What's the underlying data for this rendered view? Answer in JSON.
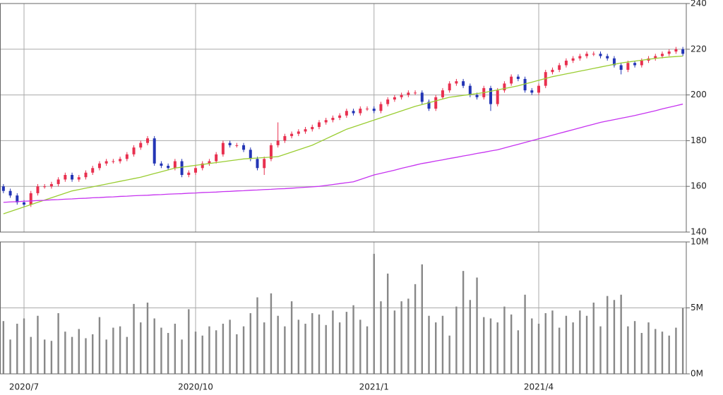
{
  "chart_data": [
    {
      "type": "candlestick",
      "up_color": "#e8304f",
      "down_color": "#2335b5",
      "open": [
        160,
        158,
        156,
        153,
        152,
        157,
        160,
        160,
        161,
        163,
        165,
        163,
        164,
        166,
        168,
        170,
        171,
        171,
        172,
        174,
        177,
        179,
        181,
        170,
        169,
        168,
        171,
        165,
        166,
        168,
        170,
        171,
        174,
        179,
        178,
        178,
        176,
        172,
        168,
        172,
        178,
        180,
        182,
        183,
        184,
        185,
        186,
        188,
        189,
        190,
        191,
        193,
        192,
        194,
        194,
        193,
        196,
        198,
        199,
        200,
        201,
        201,
        197,
        194,
        199,
        202,
        205,
        206,
        204,
        200,
        199,
        203,
        196,
        202,
        205,
        208,
        207,
        202,
        201,
        204,
        210,
        211,
        213,
        215,
        216,
        217,
        218,
        218,
        217,
        216,
        213,
        211,
        214,
        213,
        215,
        216,
        217,
        218,
        219,
        220
      ],
      "high": [
        161,
        159,
        157,
        154,
        158,
        161,
        161,
        162,
        164,
        166,
        166,
        165,
        167,
        169,
        171,
        172,
        172,
        173,
        175,
        178,
        180,
        182,
        182,
        171,
        170,
        172,
        172,
        167,
        169,
        171,
        172,
        175,
        180,
        180,
        179,
        179,
        177,
        173,
        173,
        179,
        188,
        183,
        184,
        185,
        186,
        187,
        189,
        190,
        191,
        192,
        194,
        194,
        195,
        195,
        195,
        197,
        199,
        200,
        201,
        202,
        202,
        202,
        198,
        200,
        203,
        206,
        207,
        207,
        205,
        201,
        204,
        204,
        203,
        206,
        209,
        209,
        208,
        203,
        205,
        211,
        212,
        214,
        216,
        217,
        218,
        219,
        219,
        219,
        218,
        217,
        214,
        215,
        215,
        216,
        217,
        218,
        219,
        220,
        221,
        221
      ],
      "low": [
        157,
        155,
        152,
        151,
        151,
        156,
        159,
        159,
        160,
        162,
        162,
        162,
        163,
        165,
        167,
        169,
        170,
        170,
        171,
        173,
        176,
        178,
        169,
        168,
        167,
        167,
        164,
        164,
        165,
        167,
        169,
        170,
        173,
        177,
        177,
        175,
        171,
        167,
        165,
        171,
        177,
        179,
        181,
        182,
        183,
        184,
        185,
        187,
        188,
        189,
        190,
        191,
        191,
        193,
        192,
        192,
        195,
        197,
        198,
        199,
        200,
        196,
        193,
        193,
        198,
        201,
        204,
        203,
        199,
        198,
        198,
        193,
        195,
        201,
        204,
        206,
        201,
        200,
        200,
        203,
        209,
        210,
        212,
        214,
        215,
        216,
        217,
        216,
        215,
        212,
        209,
        210,
        212,
        212,
        214,
        215,
        216,
        217,
        218,
        217
      ],
      "close": [
        158,
        156,
        153,
        152,
        157,
        160,
        160,
        161,
        163,
        165,
        163,
        164,
        166,
        168,
        170,
        171,
        171,
        172,
        174,
        177,
        179,
        181,
        170,
        169,
        168,
        171,
        165,
        166,
        168,
        170,
        171,
        174,
        179,
        178,
        178,
        176,
        172,
        168,
        172,
        178,
        180,
        182,
        183,
        184,
        185,
        186,
        188,
        189,
        190,
        191,
        193,
        192,
        194,
        194,
        193,
        196,
        198,
        199,
        200,
        201,
        201,
        197,
        194,
        199,
        202,
        205,
        206,
        204,
        200,
        199,
        203,
        196,
        202,
        205,
        208,
        207,
        202,
        201,
        204,
        210,
        211,
        213,
        215,
        216,
        217,
        218,
        218,
        217,
        216,
        213,
        211,
        214,
        213,
        215,
        216,
        217,
        218,
        219,
        220,
        218
      ],
      "series": [
        {
          "color": "#9acd32",
          "values": [
            148,
            149,
            150,
            151,
            152,
            153,
            154,
            155,
            156,
            157,
            158,
            158.6,
            159.2,
            159.8,
            160.4,
            161,
            161.6,
            162.2,
            162.8,
            163.4,
            164,
            164.8,
            165.6,
            166.4,
            167.2,
            168,
            168.4,
            168.8,
            169.2,
            169.6,
            170,
            170.4,
            170.8,
            171.2,
            171.6,
            172,
            172.2,
            172.4,
            172.6,
            172.8,
            173,
            174,
            175,
            176,
            177,
            178,
            179.4,
            180.8,
            182.2,
            183.6,
            185,
            186,
            187,
            188,
            189,
            190,
            191,
            192,
            193,
            194,
            195,
            195.8,
            196.6,
            197.4,
            198.2,
            199,
            199.4,
            199.8,
            200.2,
            200.6,
            201,
            201.6,
            202.2,
            202.8,
            203.4,
            204,
            204.8,
            205.6,
            206.4,
            207.2,
            208,
            208.6,
            209.2,
            209.8,
            210.4,
            211,
            211.6,
            212.2,
            212.8,
            213.4,
            214,
            214.4,
            214.8,
            215.2,
            215.6,
            216,
            216.3,
            216.6,
            216.8,
            217
          ]
        },
        {
          "color": "#c633f0",
          "values": [
            153,
            153.2,
            153.3,
            153.5,
            153.6,
            153.8,
            153.9,
            154.1,
            154.2,
            154.4,
            154.5,
            154.7,
            154.8,
            155,
            155.1,
            155.3,
            155.4,
            155.6,
            155.7,
            155.9,
            156,
            156.1,
            156.3,
            156.4,
            156.6,
            156.7,
            156.8,
            157,
            157.1,
            157.3,
            157.4,
            157.5,
            157.7,
            157.8,
            158,
            158.1,
            158.3,
            158.4,
            158.6,
            158.7,
            158.9,
            159,
            159.2,
            159.4,
            159.6,
            159.8,
            160,
            160.4,
            160.8,
            161.2,
            161.6,
            162,
            163,
            164,
            165,
            165.7,
            166.4,
            167.1,
            167.9,
            168.6,
            169.3,
            170,
            170.5,
            171.1,
            171.6,
            172.2,
            172.7,
            173.3,
            173.8,
            174.4,
            174.9,
            175.5,
            176,
            176.8,
            177.6,
            178.4,
            179.2,
            180,
            180.8,
            181.6,
            182.4,
            183.2,
            184,
            184.8,
            185.6,
            186.4,
            187.2,
            188,
            188.6,
            189.2,
            189.8,
            190.4,
            191,
            191.7,
            192.4,
            193.1,
            193.9,
            194.6,
            195.3,
            196
          ]
        }
      ],
      "ylim": [
        140,
        240
      ],
      "yticks": [
        140,
        160,
        180,
        200,
        220,
        240
      ],
      "grid": true
    },
    {
      "type": "bar",
      "color": "#888888",
      "categories": [
        null,
        null,
        null,
        "2020/7",
        null,
        null,
        null,
        null,
        null,
        null,
        null,
        null,
        null,
        null,
        null,
        null,
        null,
        null,
        null,
        null,
        null,
        null,
        null,
        null,
        null,
        null,
        null,
        null,
        "2020/10",
        null,
        null,
        null,
        null,
        null,
        null,
        null,
        null,
        null,
        null,
        null,
        null,
        null,
        null,
        null,
        null,
        null,
        null,
        null,
        null,
        null,
        null,
        null,
        null,
        null,
        "2021/1",
        null,
        null,
        null,
        null,
        null,
        null,
        null,
        null,
        null,
        null,
        null,
        null,
        null,
        null,
        null,
        null,
        null,
        null,
        null,
        null,
        null,
        null,
        null,
        "2021/4",
        null,
        null,
        null,
        null,
        null,
        null,
        null,
        null,
        null,
        null,
        null,
        null,
        null,
        null,
        null,
        null,
        null,
        null,
        null,
        null,
        null
      ],
      "values": [
        4,
        2.6,
        3.8,
        4.2,
        2.8,
        4.4,
        2.6,
        2.5,
        4.6,
        3.2,
        2.8,
        3.4,
        2.7,
        3,
        4.3,
        2.6,
        3.5,
        3.6,
        2.8,
        5.3,
        3.9,
        5.4,
        4.2,
        3.5,
        3.1,
        3.8,
        2.6,
        4.9,
        3.2,
        2.9,
        3.6,
        3.3,
        3.8,
        4.1,
        3,
        3.6,
        4.6,
        5.8,
        3.9,
        6.1,
        4.4,
        3.6,
        5.5,
        4.1,
        3.8,
        4.6,
        4.5,
        3.7,
        4.8,
        3.9,
        4.7,
        5.2,
        4.1,
        3.6,
        9.1,
        5.5,
        7.6,
        4.8,
        5.5,
        5.7,
        6.8,
        8.3,
        4.4,
        3.9,
        4.4,
        2.9,
        5.1,
        7.8,
        5.6,
        7.3,
        4.3,
        4.2,
        3.9,
        5.1,
        4.5,
        3.3,
        6,
        4.2,
        3.8,
        4.6,
        4.8,
        3.5,
        4.4,
        3.9,
        4.8,
        4.4,
        5.4,
        3.6,
        5.9,
        5.6,
        6,
        3.6,
        4,
        3.1,
        3.9,
        3.4,
        3.2,
        2.9,
        3.5,
        5
      ],
      "ylim": [
        0,
        10
      ],
      "yticks": [
        {
          "value": 0,
          "label": "0M"
        },
        {
          "value": 5,
          "label": "5M"
        },
        {
          "value": 10,
          "label": "10M"
        }
      ],
      "grid": true
    }
  ]
}
